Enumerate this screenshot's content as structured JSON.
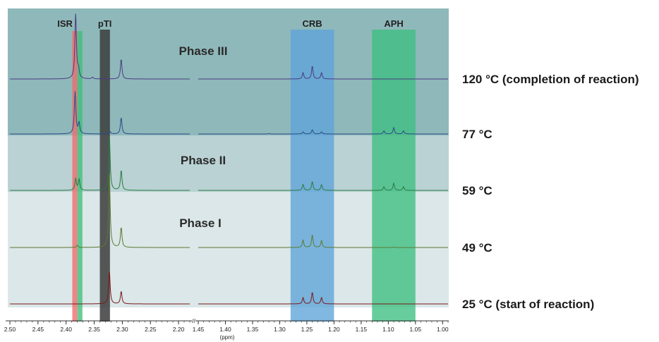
{
  "chart_data": {
    "type": "line",
    "xlabel": "(ppm)",
    "x_axis_reversed": true,
    "x_axis_broken": true,
    "x_segments": [
      {
        "from": 2.5,
        "to": 2.18,
        "ticks": [
          "2.50",
          "2.45",
          "2.40",
          "2.35",
          "2.30",
          "2.25",
          "2.20"
        ]
      },
      {
        "from": 1.45,
        "to": 0.99,
        "ticks": [
          "1.45",
          "1.40",
          "1.35",
          "1.30",
          "1.25",
          "1.20",
          "1.15",
          "1.10",
          "1.05",
          "1.00"
        ]
      }
    ],
    "axis_break_mark": "//",
    "grid": false,
    "phases": [
      {
        "label": "Phase III",
        "color": "#8fb8ba"
      },
      {
        "label": "Phase II",
        "color": "#bad2d4"
      },
      {
        "label": "Phase I",
        "color": "#dbe7e8"
      }
    ],
    "regions": [
      {
        "label": "ISR",
        "from": 2.389,
        "to": 2.38,
        "color": "#f06a6a"
      },
      {
        "label": "",
        "from": 2.38,
        "to": 2.371,
        "color": "#3fbf78"
      },
      {
        "label": "pTI",
        "from": 2.34,
        "to": 2.322,
        "color": "#3c3c3c"
      },
      {
        "label": "CRB",
        "from": 1.28,
        "to": 1.2,
        "color": "#5da4d8"
      },
      {
        "label": "APH",
        "from": 1.13,
        "to": 1.05,
        "color": "#3dbf80"
      }
    ],
    "series": [
      {
        "name": "120 °C (completion of reaction)",
        "color": "#4a3a82",
        "peaks": [
          [
            2.383,
            3.1
          ],
          [
            2.378,
            0.4
          ],
          [
            2.353,
            0.08
          ],
          [
            2.302,
            0.95
          ],
          [
            1.257,
            0.3
          ],
          [
            1.24,
            0.62
          ],
          [
            1.223,
            0.3
          ]
        ]
      },
      {
        "name": "77 °C",
        "color": "#2a4a8a",
        "peaks": [
          [
            2.384,
            2.0
          ],
          [
            2.377,
            0.5
          ],
          [
            2.322,
            0.12
          ],
          [
            2.302,
            0.78
          ],
          [
            1.32,
            0.02
          ],
          [
            1.257,
            0.1
          ],
          [
            1.24,
            0.2
          ],
          [
            1.223,
            0.1
          ],
          [
            1.108,
            0.15
          ],
          [
            1.09,
            0.3
          ],
          [
            1.072,
            0.15
          ]
        ]
      },
      {
        "name": "59 °C",
        "color": "#2a7a40",
        "peaks": [
          [
            2.383,
            0.55
          ],
          [
            2.377,
            0.52
          ],
          [
            2.323,
            2.6
          ],
          [
            2.302,
            0.95
          ],
          [
            1.257,
            0.28
          ],
          [
            1.24,
            0.42
          ],
          [
            1.223,
            0.27
          ],
          [
            1.108,
            0.18
          ],
          [
            1.09,
            0.34
          ],
          [
            1.072,
            0.18
          ]
        ]
      },
      {
        "name": "49 °C",
        "color": "#5a7a30",
        "peaks": [
          [
            2.38,
            0.1
          ],
          [
            2.323,
            3.5
          ],
          [
            2.302,
            0.95
          ],
          [
            1.257,
            0.35
          ],
          [
            1.24,
            0.6
          ],
          [
            1.223,
            0.33
          ],
          [
            1.09,
            0.02
          ]
        ]
      },
      {
        "name": "25 °C (start of reaction)",
        "color": "#7a1818",
        "peaks": [
          [
            2.323,
            1.55
          ],
          [
            2.302,
            0.6
          ],
          [
            1.257,
            0.3
          ],
          [
            1.24,
            0.55
          ],
          [
            1.223,
            0.3
          ]
        ]
      }
    ]
  }
}
